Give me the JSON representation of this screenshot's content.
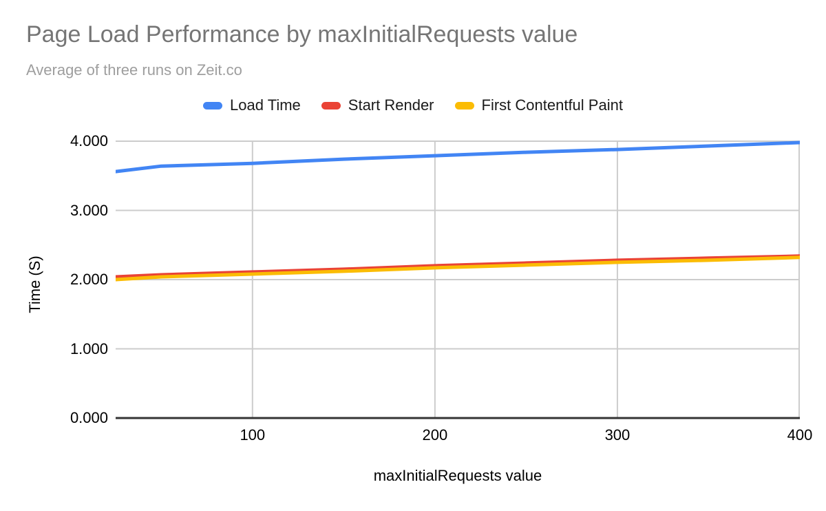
{
  "colors": {
    "background": "#ffffff",
    "title_text": "#757575",
    "subtitle_text": "#9e9e9e",
    "legend_text": "#1a1a1a",
    "tick_text": "#000000",
    "gridline": "#cccccc",
    "axis_line": "#333333",
    "series_blue": "#4285F4",
    "series_red": "#EA4335",
    "series_yellow": "#FBBC04"
  },
  "chart_data": {
    "type": "line",
    "title": "Page Load Performance by maxInitialRequests value",
    "subtitle": "Average of three runs on Zeit.co",
    "xlabel": "maxInitialRequests value",
    "ylabel": "Time (S)",
    "x": [
      25,
      50,
      100,
      150,
      200,
      250,
      300,
      350,
      400
    ],
    "series": [
      {
        "name": "Load Time",
        "color": "#4285F4",
        "values": [
          3.56,
          3.64,
          3.68,
          3.74,
          3.79,
          3.84,
          3.88,
          3.93,
          3.98
        ]
      },
      {
        "name": "Start Render",
        "color": "#EA4335",
        "values": [
          2.04,
          2.07,
          2.11,
          2.15,
          2.2,
          2.24,
          2.28,
          2.31,
          2.34
        ]
      },
      {
        "name": "First Contentful Paint",
        "color": "#FBBC04",
        "values": [
          2.0,
          2.04,
          2.08,
          2.12,
          2.17,
          2.21,
          2.25,
          2.28,
          2.32
        ]
      }
    ],
    "xlim": [
      25,
      400
    ],
    "ylim": [
      0,
      4
    ],
    "x_ticks": [
      100,
      200,
      300,
      400
    ],
    "y_ticks": [
      {
        "value": 4,
        "label": "4.000"
      },
      {
        "value": 3,
        "label": "3.000"
      },
      {
        "value": 2,
        "label": "2.000"
      },
      {
        "value": 1,
        "label": "1.000"
      },
      {
        "value": 0,
        "label": "0.000"
      }
    ],
    "grid": true,
    "legend_position": "top"
  }
}
